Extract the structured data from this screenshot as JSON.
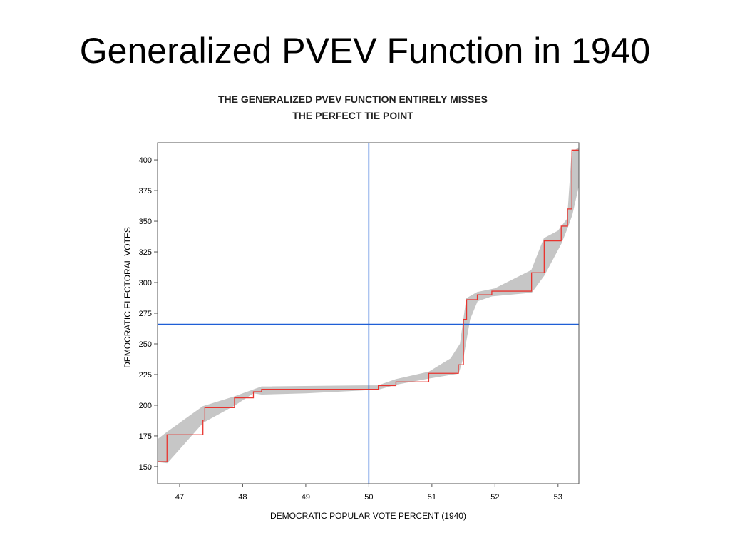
{
  "slide": {
    "title": "Generalized PVEV Function in 1940"
  },
  "chart_data": {
    "type": "line",
    "title": "THE GENERALIZED PVEV FUNCTION ENTIRELY MISSES",
    "subtitle": "THE PERFECT TIE POINT",
    "xlabel": "DEMOCRATIC POPULAR VOTE PERCENT (1940)",
    "ylabel": "DEMOCRATIC ELECTORAL VOTES",
    "xlim": [
      46.65,
      53.33
    ],
    "ylim": [
      136,
      414
    ],
    "xticks": [
      47,
      48,
      49,
      50,
      51,
      52,
      53
    ],
    "yticks": [
      150,
      175,
      200,
      225,
      250,
      275,
      300,
      325,
      350,
      375,
      400
    ],
    "grid": false,
    "reference_lines": {
      "vertical_x": 50,
      "horizontal_y": 266,
      "color": "#1f5fd6"
    },
    "series": [
      {
        "style": "step",
        "color": "#e8342f",
        "x": [
          46.65,
          46.8,
          46.8,
          47.37,
          47.37,
          47.4,
          47.4,
          47.87,
          47.87,
          48.17,
          48.17,
          48.3,
          48.3,
          50.15,
          50.15,
          50.43,
          50.43,
          50.95,
          50.95,
          51.42,
          51.42,
          51.5,
          51.5,
          51.55,
          51.55,
          51.72,
          51.72,
          51.95,
          51.95,
          52.58,
          52.58,
          52.78,
          52.78,
          53.05,
          53.05,
          53.15,
          53.15,
          53.22,
          53.22,
          53.33
        ],
        "y": [
          154,
          154,
          176,
          176,
          188,
          188,
          198,
          198,
          206,
          206,
          211,
          211,
          213,
          213,
          216,
          216,
          219,
          219,
          226,
          226,
          233,
          233,
          270,
          270,
          286,
          286,
          290,
          290,
          293,
          293,
          308,
          308,
          334,
          334,
          346,
          346,
          360,
          360,
          408,
          408
        ]
      }
    ],
    "band": {
      "color": "#c6c6c6",
      "x_upper": [
        46.65,
        46.8,
        47.37,
        47.87,
        48.3,
        50.15,
        50.43,
        50.95,
        51.3,
        51.45,
        51.55,
        51.72,
        52.0,
        52.58,
        52.78,
        53.0,
        53.15,
        53.22,
        53.33
      ],
      "y_upper": [
        172,
        178,
        199,
        207,
        215,
        216,
        221,
        227,
        238,
        250,
        287,
        292,
        295,
        310,
        336,
        342,
        352,
        406,
        410
      ],
      "x_lower": [
        53.33,
        53.22,
        53.15,
        53.05,
        52.78,
        52.58,
        51.95,
        51.72,
        51.6,
        51.5,
        51.42,
        50.95,
        50.43,
        50.15,
        49.0,
        48.3,
        48.17,
        47.87,
        47.37,
        46.8,
        46.65
      ],
      "y_lower": [
        380,
        355,
        345,
        332,
        306,
        292,
        289,
        285,
        270,
        240,
        226,
        222,
        217,
        213,
        210,
        209,
        210,
        200,
        186,
        153,
        154
      ]
    }
  }
}
